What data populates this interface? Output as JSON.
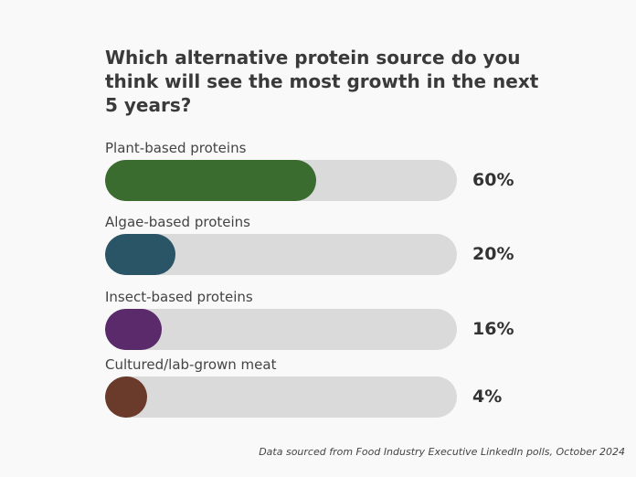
{
  "chart_data": {
    "type": "bar",
    "orientation": "horizontal",
    "title": "Which alternative protein source do you think will see the most growth in the next 5 years?",
    "categories": [
      "Plant-based proteins",
      "Algae-based proteins",
      "Insect-based proteins",
      "Cultured/lab-grown meat"
    ],
    "values": [
      60,
      20,
      16,
      4
    ],
    "value_labels": [
      "60%",
      "20%",
      "16%",
      "4%"
    ],
    "colors": [
      "#3a6b2f",
      "#2a5566",
      "#5a2a6a",
      "#6a3a2a"
    ],
    "track_color": "#dadada",
    "xlim": [
      0,
      100
    ],
    "grid": false,
    "source": "Data sourced from Food Industry Executive LinkedIn polls, October 2024"
  }
}
